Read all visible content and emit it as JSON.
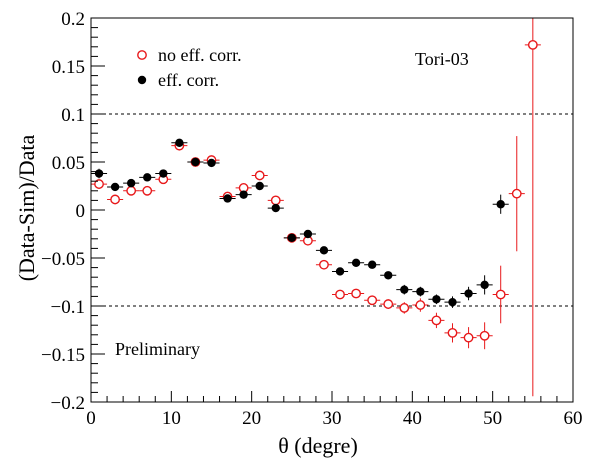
{
  "chart_data": {
    "type": "scatter",
    "title": "",
    "xlabel": "θ (degre)",
    "ylabel": "(Data-Sim)/Data",
    "xlim": [
      0,
      60
    ],
    "ylim": [
      -0.2,
      0.2
    ],
    "x_ticks": [
      0,
      10,
      20,
      30,
      40,
      50,
      60
    ],
    "y_ticks": [
      -0.2,
      -0.15,
      -0.1,
      -0.05,
      0,
      0.05,
      0.1,
      0.15,
      0.2
    ],
    "x_tick_labels": [
      "0",
      "10",
      "20",
      "30",
      "40",
      "50",
      "60"
    ],
    "y_tick_labels": [
      "−0.2",
      "−0.15",
      "−0.1",
      "−0.05",
      "0",
      "0.05",
      "0.1",
      "0.15",
      "0.2"
    ],
    "x_error_half_width": 1,
    "reference_lines": [
      0.1,
      -0.1
    ],
    "annotations": [
      "Tori-03",
      "Preliminary"
    ],
    "legend_position": "top-left",
    "series": [
      {
        "name": "no eff. corr.",
        "marker": "open-circle",
        "color": "#e8191b",
        "points": [
          [
            1,
            0.027,
            0.005
          ],
          [
            3,
            0.011,
            0.005
          ],
          [
            5,
            0.02,
            0.004
          ],
          [
            7,
            0.02,
            0.004
          ],
          [
            9,
            0.032,
            0.004
          ],
          [
            11,
            0.067,
            0.004
          ],
          [
            13,
            0.05,
            0.004
          ],
          [
            15,
            0.052,
            0.004
          ],
          [
            17,
            0.014,
            0.004
          ],
          [
            19,
            0.023,
            0.004
          ],
          [
            21,
            0.036,
            0.004
          ],
          [
            23,
            0.01,
            0.004
          ],
          [
            25,
            -0.029,
            0.004
          ],
          [
            27,
            -0.032,
            0.004
          ],
          [
            29,
            -0.057,
            0.004
          ],
          [
            31,
            -0.088,
            0.004
          ],
          [
            33,
            -0.087,
            0.004
          ],
          [
            35,
            -0.094,
            0.005
          ],
          [
            37,
            -0.098,
            0.005
          ],
          [
            39,
            -0.102,
            0.006
          ],
          [
            41,
            -0.099,
            0.007
          ],
          [
            43,
            -0.115,
            0.008
          ],
          [
            45,
            -0.128,
            0.01
          ],
          [
            47,
            -0.133,
            0.011
          ],
          [
            49,
            -0.131,
            0.014
          ],
          [
            51,
            -0.088,
            0.03
          ],
          [
            53,
            0.017,
            0.06
          ],
          [
            55,
            0.172,
            0.366
          ]
        ]
      },
      {
        "name": "eff. corr.",
        "marker": "filled-circle",
        "color": "#000000",
        "points": [
          [
            1,
            0.038,
            0.005
          ],
          [
            3,
            0.024,
            0.004
          ],
          [
            5,
            0.028,
            0.004
          ],
          [
            7,
            0.034,
            0.004
          ],
          [
            9,
            0.038,
            0.004
          ],
          [
            11,
            0.07,
            0.004
          ],
          [
            13,
            0.05,
            0.004
          ],
          [
            15,
            0.049,
            0.004
          ],
          [
            17,
            0.012,
            0.004
          ],
          [
            19,
            0.016,
            0.004
          ],
          [
            21,
            0.025,
            0.004
          ],
          [
            23,
            0.002,
            0.004
          ],
          [
            25,
            -0.029,
            0.004
          ],
          [
            27,
            -0.025,
            0.004
          ],
          [
            29,
            -0.042,
            0.004
          ],
          [
            31,
            -0.064,
            0.004
          ],
          [
            33,
            -0.055,
            0.004
          ],
          [
            35,
            -0.057,
            0.004
          ],
          [
            37,
            -0.068,
            0.004
          ],
          [
            39,
            -0.083,
            0.005
          ],
          [
            41,
            -0.085,
            0.005
          ],
          [
            43,
            -0.093,
            0.005
          ],
          [
            45,
            -0.096,
            0.006
          ],
          [
            47,
            -0.087,
            0.007
          ],
          [
            49,
            -0.078,
            0.01
          ],
          [
            51,
            0.006,
            0.01
          ]
        ]
      }
    ]
  }
}
